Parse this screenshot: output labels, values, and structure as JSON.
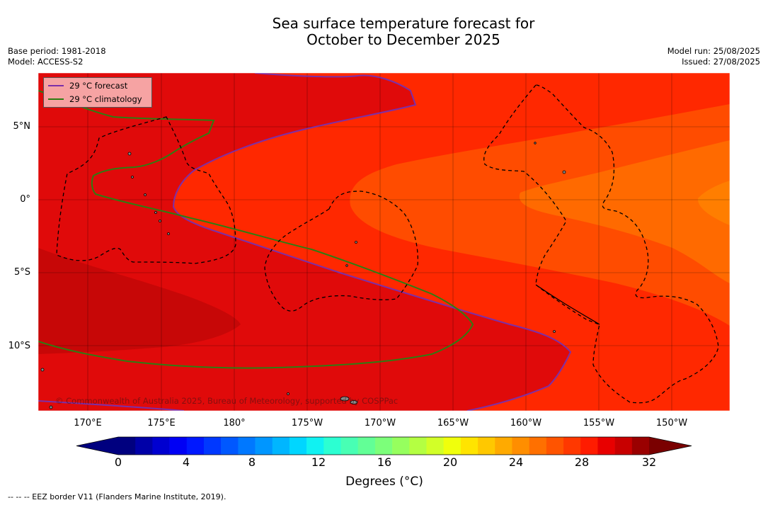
{
  "header": {
    "title_line1": "Sea surface temperature forecast for",
    "title_line2": "October to December 2025",
    "base_period": "Base period: 1981-2018",
    "model": "Model: ACCESS-S2",
    "model_run": "Model run: 25/08/2025",
    "issued": "Issued: 27/08/2025"
  },
  "map": {
    "lat_labels": [
      "5°N",
      "0°",
      "5°S",
      "10°S"
    ],
    "lon_labels": [
      "170°E",
      "175°E",
      "180°",
      "175°W",
      "170°W",
      "165°W",
      "160°W",
      "155°W",
      "150°W"
    ],
    "copyright": "© Commonwealth of Australia 2025, Bureau of Meteorology, supported by COSPPac",
    "colors": {
      "band_29_30": "#e00a0a",
      "band_30_31": "#c70707",
      "band_28_29": "#ff2800",
      "band_27_28": "#ff4c00",
      "band_26_27": "#ff6a00",
      "forecast_line": "#7c2fa8",
      "climatology_line": "#2e7d12",
      "eez_border": "#000000"
    }
  },
  "legend": {
    "forecast_label": "29 °C  forecast",
    "climatology_label": "29 °C  climatology"
  },
  "colorbar": {
    "tick_labels": [
      "0",
      "4",
      "8",
      "12",
      "16",
      "20",
      "24",
      "28",
      "32"
    ],
    "title": "Degrees (°C)",
    "colors": [
      "#00007f",
      "#0000a8",
      "#0000d0",
      "#0000f5",
      "#0018ff",
      "#0038ff",
      "#0058ff",
      "#0078ff",
      "#0096ff",
      "#00b6ff",
      "#00d6ff",
      "#10f2f2",
      "#2cffd2",
      "#48ffb4",
      "#62ff96",
      "#7cff7a",
      "#96ff5e",
      "#b4ff42",
      "#d2ff28",
      "#f0ff0c",
      "#ffe400",
      "#ffc800",
      "#ffaa00",
      "#ff8e00",
      "#ff7000",
      "#ff5400",
      "#ff3800",
      "#ff1c00",
      "#e80000",
      "#c80000",
      "#9a0000"
    ]
  },
  "footnote": "--  --  -- EEZ border V11 (Flanders Marine Institute, 2019)."
}
